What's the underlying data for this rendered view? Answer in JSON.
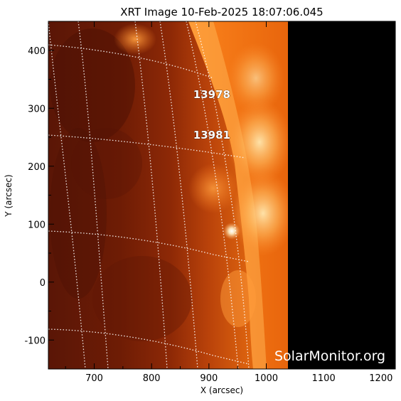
{
  "title": "XRT Image 10-Feb-2025 18:07:06.045",
  "x_axis": {
    "label": "X (arcsec)",
    "range": [
      620,
      1225
    ],
    "ticks": [
      "700",
      "800",
      "900",
      "1000",
      "1100",
      "1200"
    ],
    "tick_values": [
      700,
      800,
      900,
      1000,
      1100,
      1200
    ]
  },
  "y_axis": {
    "label": "Y (arcsec)",
    "range": [
      -150,
      450
    ],
    "ticks": [
      "-100",
      "0",
      "100",
      "200",
      "300",
      "400"
    ],
    "tick_values": [
      -100,
      0,
      100,
      200,
      300,
      400
    ]
  },
  "active_regions": [
    {
      "label": "13978",
      "x": 905,
      "y": 325
    },
    {
      "label": "13981",
      "x": 905,
      "y": 255
    }
  ],
  "watermark": "SolarMonitor.org",
  "colors": {
    "disk_dark": "#5a1404",
    "disk_mid": "#9a2e08",
    "limb_bright": "#ffb050",
    "flare_core": "#fff6e0",
    "off_image": "#000000",
    "grid": "#ffffff"
  }
}
